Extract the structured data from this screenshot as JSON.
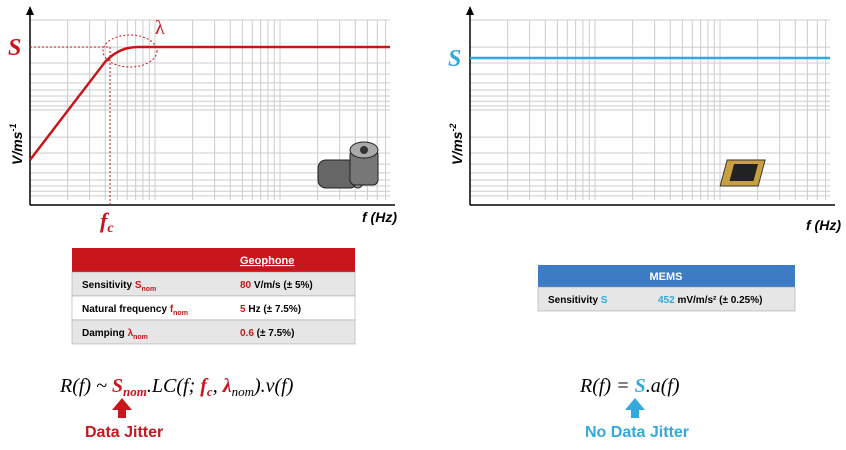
{
  "left": {
    "s_label": "S",
    "lambda_label": "λ",
    "y_axis": {
      "base": "V/ms",
      "sup": "-1"
    },
    "fc_label": {
      "base": "f",
      "sub": "c"
    },
    "x_axis": "f (Hz)",
    "table": {
      "header": "Geophone",
      "rows": [
        {
          "label": "Sensitivity S",
          "label_sub": "nom",
          "value": "80",
          "unit": " V/m/s (± 5%)"
        },
        {
          "label": "Natural frequency f",
          "label_sub": "nom",
          "value": "5",
          "unit": " Hz (± 7.5%)"
        },
        {
          "label": "Damping λ",
          "label_sub": "nom",
          "value": "0.6",
          "unit": " (± 7.5%)"
        }
      ]
    },
    "formula": [
      "R(f) ~ ",
      "S",
      "nom",
      ".LC(f; ",
      "f",
      "c",
      ",  ",
      "λ",
      "nom",
      ").v(f)"
    ],
    "caption": "Data Jitter"
  },
  "right": {
    "s_label": "S",
    "y_axis": {
      "base": "V/ms",
      "sup": "-2"
    },
    "x_axis": "f (Hz)",
    "table": {
      "header": "MEMS",
      "rows": [
        {
          "label": "Sensitivity S",
          "value": "452",
          "unit": " mV/m/s² (± 0.25%)"
        }
      ]
    },
    "formula": [
      "R(f) = ",
      "S",
      ".a(f)"
    ],
    "caption": "No Data Jitter"
  }
}
